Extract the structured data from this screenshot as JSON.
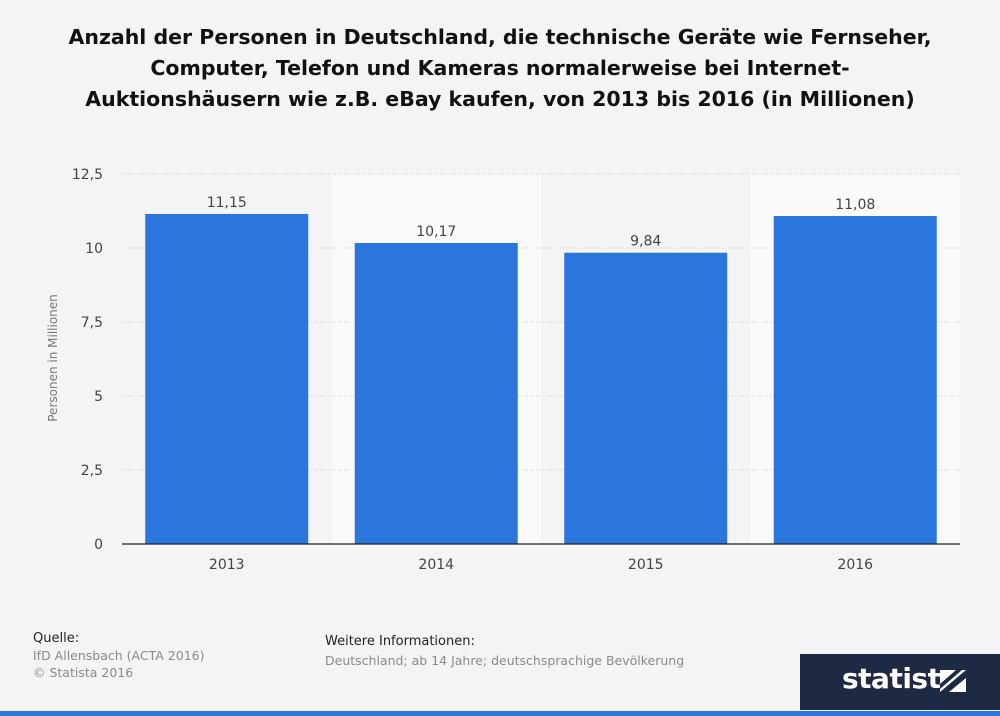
{
  "chart_data": {
    "type": "bar",
    "title": "Anzahl der Personen in Deutschland, die technische Geräte wie Fernseher, Computer, Telefon und Kameras normalerweise bei Internet-Auktionshäusern wie z.B. eBay kaufen, von 2013 bis 2016 (in Millionen)",
    "categories": [
      "2013",
      "2014",
      "2015",
      "2016"
    ],
    "values": [
      11.15,
      10.17,
      9.84,
      11.08
    ],
    "value_labels": [
      "11,15",
      "10,17",
      "9,84",
      "11,08"
    ],
    "ylabel": "Personen in Millionen",
    "xlabel": "",
    "ylim": [
      0,
      12.5
    ],
    "yticks": [
      {
        "value": 0,
        "label": "0"
      },
      {
        "value": 2.5,
        "label": "2,5"
      },
      {
        "value": 5,
        "label": "5"
      },
      {
        "value": 7.5,
        "label": "7,5"
      },
      {
        "value": 10,
        "label": "10"
      },
      {
        "value": 12.5,
        "label": "12,5"
      }
    ],
    "grid": true,
    "bar_color": "#2a76dc"
  },
  "footer": {
    "source_label": "Quelle:",
    "source_lines": [
      "IfD Allensbach (ACTA 2016)",
      "© Statista 2016"
    ],
    "info_label": "Weitere Informationen:",
    "info_text": "Deutschland; ab 14 Jahre; deutschsprachige Bevölkerung"
  },
  "brand": {
    "name": "statista",
    "icon": "statista-logo-icon",
    "color": "#1e2a44"
  }
}
